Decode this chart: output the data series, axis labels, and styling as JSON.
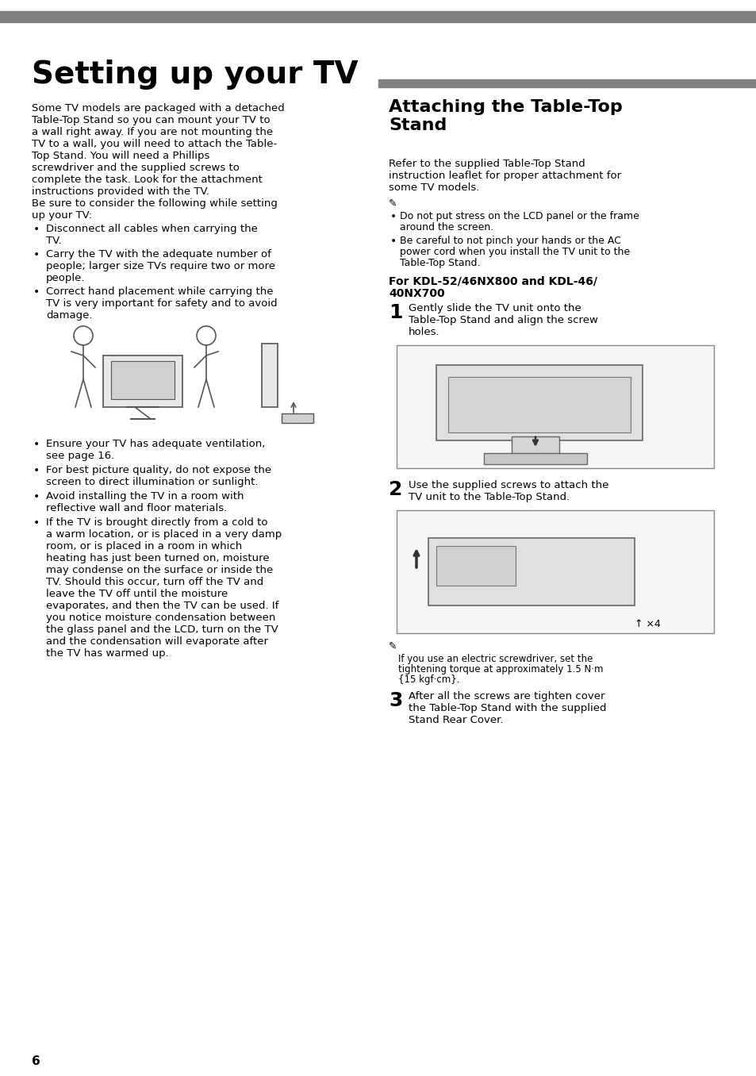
{
  "page_bg": "#ffffff",
  "main_title": "Setting up your TV",
  "section2_title": "Attaching the Table-Top\nStand",
  "left_body_text": "Some TV models are packaged with a detached\nTable-Top Stand so you can mount your TV to\na wall right away. If you are not mounting the\nTV to a wall, you will need to attach the Table-\nTop Stand. You will need a Phillips\nscrewdriver and the supplied screws to\ncomplete the task. Look for the attachment\ninstructions provided with the TV.\nBe sure to consider the following while setting\nup your TV:",
  "left_bullets": [
    "Disconnect all cables when carrying the\nTV.",
    "Carry the TV with the adequate number of\npeople; larger size TVs require two or more\npeople.",
    "Correct hand placement while carrying the\nTV is very important for safety and to avoid\ndamage."
  ],
  "left_bullets2": [
    "Ensure your TV has adequate ventilation,\nsee page 16.",
    "For best picture quality, do not expose the\nscreen to direct illumination or sunlight.",
    "Avoid installing the TV in a room with\nreflective wall and floor materials.",
    "If the TV is brought directly from a cold to\na warm location, or is placed in a very damp\nroom, or is placed in a room in which\nheating has just been turned on, moisture\nmay condense on the surface or inside the\nTV. Should this occur, turn off the TV and\nleave the TV off until the moisture\nevaporates, and then the TV can be used. If\nyou notice moisture condensation between\nthe glass panel and the LCD, turn on the TV\nand the condensation will evaporate after\nthe TV has warmed up."
  ],
  "right_intro": "Refer to the supplied Table-Top Stand\ninstruction leaflet for proper attachment for\nsome TV models.",
  "right_notes": [
    "Do not put stress on the LCD panel or the frame\naround the screen.",
    "Be careful to not pinch your hands or the AC\npower cord when you install the TV unit to the\nTable-Top Stand."
  ],
  "subheading": "For KDL-52/46NX800 and KDL-46/\n40NX700",
  "step1_num": "1",
  "step1_text": "Gently slide the TV unit onto the\nTable-Top Stand and align the screw\nholes.",
  "step2_num": "2",
  "step2_text": "Use the supplied screws to attach the\nTV unit to the Table-Top Stand.",
  "step3_num": "3",
  "step3_text": "After all the screws are tighten cover\nthe Table-Top Stand with the supplied\nStand Rear Cover.",
  "note_after_step2": "If you use an electric screwdriver, set the\ntightening torque at approximately 1.5 N·m\n{15 kgf·cm}.",
  "screw_count_label": "↑ ×4",
  "page_number": "6",
  "bar_color": "#808080",
  "text_color": "#000000"
}
